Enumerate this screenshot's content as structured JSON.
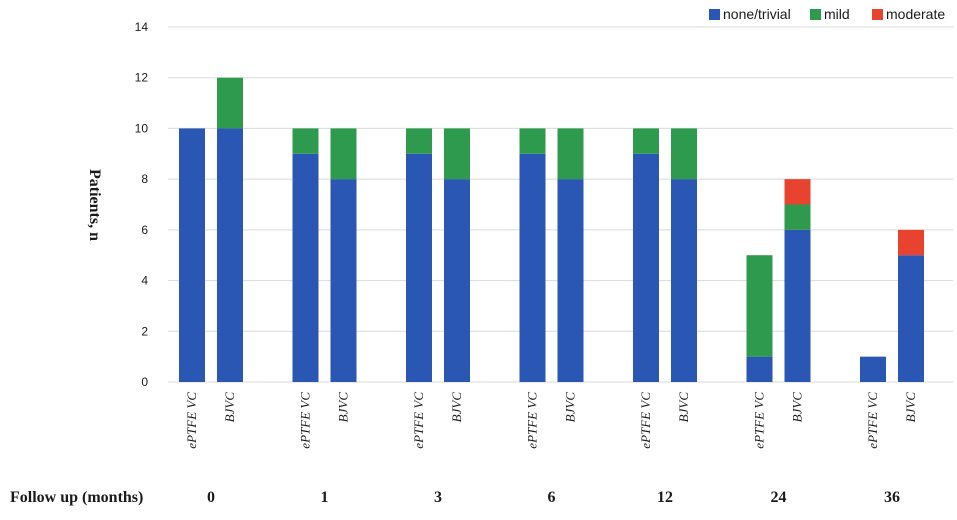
{
  "chart_data": {
    "type": "bar",
    "stacked": true,
    "title": "",
    "xlabel": "Follow up (months)",
    "ylabel": "Patients, n",
    "ylim": [
      0,
      14
    ],
    "yticks": [
      0,
      2,
      4,
      6,
      8,
      10,
      12,
      14
    ],
    "grid": true,
    "legend_position": "top-right",
    "groups": [
      "0",
      "1",
      "3",
      "6",
      "12",
      "24",
      "36"
    ],
    "categories": [
      "ePTFE VC",
      "BJVC",
      "ePTFE VC",
      "BJVC",
      "ePTFE VC",
      "BJVC",
      "ePTFE VC",
      "BJVC",
      "ePTFE VC",
      "BJVC",
      "ePTFE VC",
      "BJVC",
      "ePTFE VC",
      "BJVC"
    ],
    "series": [
      {
        "name": "none/trivial",
        "color": "#2a56b4",
        "values": [
          10,
          10,
          9,
          8,
          9,
          8,
          9,
          8,
          9,
          8,
          1,
          6,
          1,
          5
        ]
      },
      {
        "name": "mild",
        "color": "#2e9a4e",
        "values": [
          0,
          2,
          1,
          2,
          1,
          2,
          1,
          2,
          1,
          2,
          4,
          1,
          0,
          0
        ]
      },
      {
        "name": "moderate",
        "color": "#e8432f",
        "values": [
          0,
          0,
          0,
          0,
          0,
          0,
          0,
          0,
          0,
          0,
          0,
          1,
          0,
          1
        ]
      }
    ]
  }
}
